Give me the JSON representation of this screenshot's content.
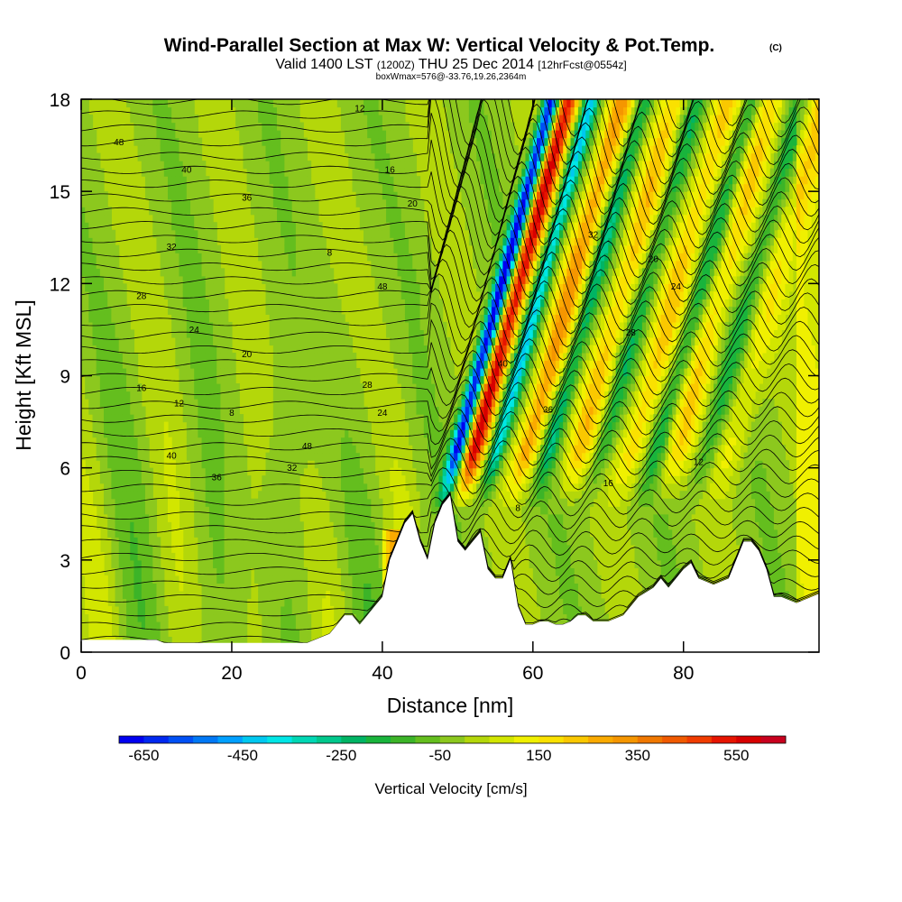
{
  "chart_data": {
    "type": "heatmap",
    "title": "Wind-Parallel Section at Max W: Vertical Velocity & Pot.Temp.",
    "title_suffix": "(C)",
    "subtitle": {
      "part1": "Valid 1400 LST",
      "part2": "(1200Z)",
      "part3": "THU 25 Dec 2014",
      "part4": "[12hrFcst@0554z]"
    },
    "info_line": "boxWmax=576@-33.76,19.26,2364m",
    "xlabel": "Distance [nm]",
    "ylabel": "Height [Kft MSL]",
    "xlim": [
      0,
      98
    ],
    "ylim": [
      0,
      18
    ],
    "xticks": [
      0,
      20,
      40,
      60,
      80
    ],
    "xtick_labels": [
      "0",
      "20",
      "40",
      "60",
      "80"
    ],
    "yticks": [
      0,
      3,
      6,
      9,
      12,
      15,
      18
    ],
    "ytick_labels": [
      "0",
      "3",
      "6",
      "9",
      "12",
      "15",
      "18"
    ],
    "colorbar": {
      "label": "Vertical Velocity [cm/s]",
      "min": -700,
      "max": 650,
      "step": 50,
      "tick_values": [
        -650,
        -450,
        -250,
        -50,
        150,
        350,
        550
      ],
      "tick_labels": [
        "-650",
        "-450",
        "-250",
        "-50",
        "150",
        "350",
        "550"
      ],
      "colors": [
        "#0000f0",
        "#0028f0",
        "#0050f5",
        "#0078f5",
        "#00a0ff",
        "#00c8f0",
        "#00e6e6",
        "#00d7b4",
        "#00c88c",
        "#00b464",
        "#19b43c",
        "#3cb428",
        "#64be1e",
        "#8cc81e",
        "#b4d70a",
        "#d2e600",
        "#f0f000",
        "#fae100",
        "#fac800",
        "#faaa00",
        "#f59600",
        "#f07800",
        "#f05a00",
        "#f03c00",
        "#e61400",
        "#d70000",
        "#c8001e"
      ]
    },
    "field": {
      "description": "vertical velocity (cm/s) shaded, potential temperature (C) contoured",
      "w_max": 576,
      "w_min": -650,
      "wave_crest_nm": [
        50.5,
        58.5,
        66,
        73.5,
        79.5
      ],
      "wave_trough_nm": [
        48.5,
        54,
        61,
        68,
        76
      ]
    },
    "terrain_kft": {
      "x": [
        0,
        10,
        11,
        14,
        16,
        17,
        20,
        23,
        24,
        26,
        30,
        33,
        34,
        35,
        36,
        37,
        38,
        39,
        40,
        41,
        42,
        43,
        44,
        45,
        46,
        47,
        48,
        49,
        50,
        51,
        52,
        53,
        54,
        55,
        56,
        57,
        58,
        59,
        60,
        61,
        62,
        63,
        64,
        65,
        66,
        67,
        68,
        70,
        72,
        74,
        76,
        77,
        78,
        79,
        80,
        81,
        82,
        84,
        86,
        87,
        88,
        89,
        90,
        91,
        92,
        93,
        95,
        98
      ],
      "y": [
        0.4,
        0.4,
        0.3,
        0.3,
        0.3,
        0.3,
        0.3,
        0.3,
        0.3,
        0.3,
        0.3,
        0.6,
        0.9,
        1.2,
        1.2,
        0.9,
        1.2,
        1.5,
        1.8,
        3.0,
        3.6,
        4.2,
        4.5,
        3.6,
        3.0,
        4.2,
        4.8,
        5.1,
        3.6,
        3.3,
        3.6,
        3.9,
        2.7,
        2.4,
        2.4,
        3.0,
        1.5,
        0.9,
        0.9,
        1.0,
        1.0,
        0.9,
        0.9,
        1.0,
        1.2,
        1.2,
        1.0,
        1.0,
        1.2,
        1.8,
        2.1,
        2.4,
        2.1,
        2.4,
        2.7,
        2.9,
        2.4,
        2.2,
        2.4,
        3.0,
        3.6,
        3.6,
        3.3,
        2.7,
        1.8,
        1.8,
        1.6,
        1.9
      ]
    },
    "isentrope_labels": [
      "48",
      "40",
      "36",
      "32",
      "28",
      "24",
      "20",
      "16",
      "12",
      "8"
    ]
  }
}
